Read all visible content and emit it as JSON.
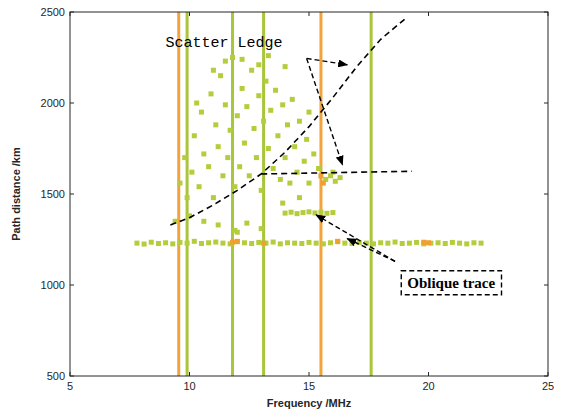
{
  "chart_data": {
    "type": "scatter",
    "x_label": "Frequency /MHz",
    "y_label": "Path distance /km",
    "xlim": [
      5,
      25
    ],
    "ylim": [
      500,
      2500
    ],
    "xticks": [
      5,
      10,
      15,
      20,
      25
    ],
    "yticks": [
      500,
      1000,
      1500,
      2000,
      2500
    ],
    "grid": false,
    "series": [
      {
        "type": "vline",
        "color": "#f2a33a",
        "x": [
          9.55,
          15.5
        ]
      },
      {
        "type": "vline",
        "color": "#a9c53a",
        "x": [
          9.9,
          11.8,
          13.1,
          17.6
        ]
      },
      {
        "type": "scatter",
        "marker": "square",
        "color": "#b4cd3c",
        "x": [
          7.8,
          8.1,
          8.4,
          8.7,
          9.0,
          9.3,
          9.6,
          9.9,
          10.2,
          10.5,
          10.8,
          11.1,
          11.4,
          11.7,
          12.0,
          12.3,
          12.6,
          12.9,
          13.2,
          13.5,
          13.8,
          14.1,
          14.4,
          14.7,
          15.0,
          15.3,
          15.6,
          15.9,
          16.2,
          16.5,
          16.8,
          17.1,
          17.4,
          17.7,
          18.0,
          18.3,
          18.6,
          18.9,
          19.2,
          19.5,
          19.8,
          20.1,
          20.4,
          20.7,
          21.0,
          21.3,
          21.6,
          21.9,
          22.2
        ],
        "values": [
          1230,
          1225,
          1235,
          1228,
          1232,
          1226,
          1234,
          1230,
          1240,
          1228,
          1232,
          1236,
          1230,
          1226,
          1238,
          1232,
          1228,
          1234,
          1230,
          1236,
          1226,
          1232,
          1230,
          1228,
          1234,
          1230,
          1226,
          1232,
          1238,
          1230,
          1228,
          1234,
          1230,
          1226,
          1232,
          1230,
          1236,
          1228,
          1230,
          1234,
          1226,
          1230,
          1232,
          1228,
          1234,
          1230,
          1226,
          1232,
          1230
        ]
      },
      {
        "type": "scatter",
        "marker": "square",
        "color": "#b4cd3c",
        "x": [
          14.0,
          14.25,
          14.5,
          14.75,
          15.0,
          15.25,
          15.5,
          15.75,
          16.0
        ],
        "values": [
          1395,
          1400,
          1392,
          1398,
          1402,
          1396,
          1400,
          1394,
          1398
        ]
      },
      {
        "type": "scatter",
        "marker": "square",
        "color": "#b4cd3c",
        "x": [
          9.6,
          9.8,
          9.9,
          10.1,
          10.2,
          10.4,
          10.5,
          10.6,
          10.8,
          10.9,
          11.0,
          11.1,
          11.2,
          11.3,
          11.4,
          11.5,
          11.6,
          11.7,
          11.8,
          11.9,
          12.0,
          12.1,
          12.2,
          12.3,
          12.4,
          12.5,
          12.6,
          12.7,
          12.8,
          12.9,
          13.0,
          13.1,
          13.2,
          13.3,
          13.4,
          13.5,
          13.6,
          13.7,
          13.8,
          13.9,
          14.0,
          14.1,
          14.2,
          14.3,
          14.4,
          14.5,
          14.6,
          14.8,
          14.9,
          15.0,
          15.2,
          15.4,
          15.7,
          15.9,
          16.1,
          16.3,
          10.6,
          11.2,
          11.9,
          12.4,
          13.0,
          12.0,
          10.3,
          11.5,
          12.2,
          13.3,
          14.0,
          15.0,
          16.0,
          9.4,
          10.0,
          11.0,
          12.9,
          13.9,
          14.6
        ],
        "values": [
          1560,
          1700,
          1480,
          1620,
          1820,
          1540,
          1950,
          1720,
          1650,
          2050,
          1480,
          1880,
          1760,
          2150,
          1600,
          1990,
          1700,
          1850,
          2250,
          1540,
          1930,
          1650,
          2080,
          1780,
          1980,
          1600,
          2180,
          1860,
          1700,
          2040,
          1520,
          1900,
          2120,
          1750,
          1960,
          1640,
          2070,
          1820,
          1580,
          1990,
          1700,
          1880,
          1560,
          2020,
          1760,
          1620,
          1900,
          1680,
          1800,
          1560,
          1720,
          1640,
          1580,
          1600,
          1570,
          1590,
          1350,
          1330,
          1300,
          1340,
          1310,
          1290,
          2000,
          2230,
          2240,
          2260,
          2200,
          1950,
          1620,
          1350,
          1380,
          2180,
          2210,
          1450,
          1480
        ]
      },
      {
        "type": "scatter",
        "marker": "square",
        "color": "#f0a030",
        "x": [
          11.8,
          12.0,
          13.1,
          15.6,
          15.5,
          16.2,
          19.8,
          20.0
        ],
        "values": [
          1235,
          1240,
          1230,
          1560,
          1600,
          1240,
          1235,
          1232
        ]
      },
      {
        "type": "line",
        "line_style": "dashed",
        "color": "#000000",
        "x": [
          9.2,
          10,
          11,
          12,
          13,
          14,
          15,
          16,
          17,
          18,
          19
        ],
        "values": [
          1330,
          1370,
          1440,
          1520,
          1610,
          1730,
          1870,
          2030,
          2200,
          2350,
          2460
        ]
      },
      {
        "type": "line",
        "line_style": "dashed",
        "color": "#000000",
        "x": [
          13,
          19.3
        ],
        "values": [
          1610,
          1625
        ]
      }
    ],
    "annotations": [
      {
        "text": "Scatter Ledge",
        "x": 9.0,
        "y": 2305,
        "arrows": [
          {
            "x": [
              14.9,
              16.6
            ],
            "y": [
              2245,
              2210
            ]
          },
          {
            "x": [
              14.9,
              16.4
            ],
            "y": [
              2245,
              1660
            ]
          }
        ]
      },
      {
        "text": "Oblique trace",
        "x": 20.95,
        "y": 985,
        "line_style": "dashed",
        "arrows": [
          {
            "x": [
              18.6,
              15.3
            ],
            "y": [
              1130,
              1385
            ]
          },
          {
            "x": [
              18.6,
              16.6
            ],
            "y": [
              1130,
              1255
            ]
          }
        ]
      }
    ]
  }
}
